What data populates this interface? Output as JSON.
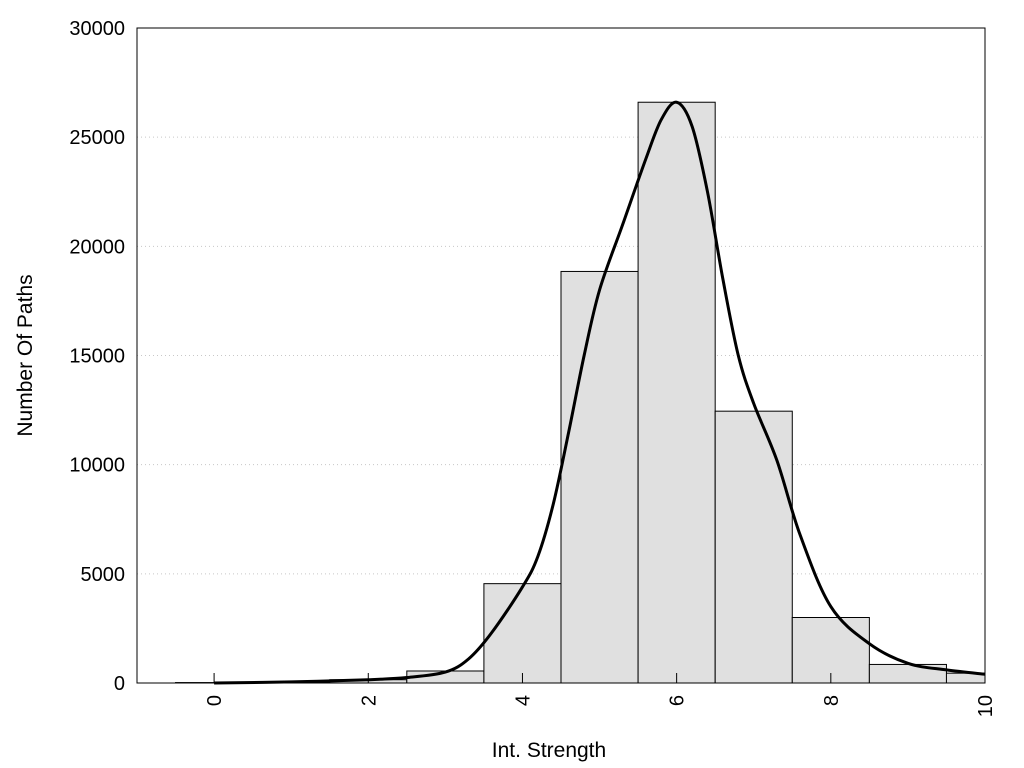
{
  "chart_data": {
    "type": "bar",
    "title": "",
    "xlabel": "Int. Strength",
    "ylabel": "Number Of Paths",
    "xlim": [
      -1,
      10
    ],
    "ylim": [
      0,
      30000
    ],
    "x_ticks": [
      "0",
      "2",
      "4",
      "6",
      "8",
      "10"
    ],
    "y_ticks": [
      "0",
      "5000",
      "10000",
      "15000",
      "20000",
      "25000",
      "30000"
    ],
    "grid": "horizontal dotted",
    "legend": "none",
    "colors": {
      "bar_fill": "#e0e0e0",
      "bar_stroke": "#000000",
      "curve": "#000000",
      "grid": "#c8c8c8"
    },
    "series": [
      {
        "kind": "histogram",
        "bins": [
          {
            "x0": -0.5,
            "x1": 0.5,
            "value": 20
          },
          {
            "x0": 0.5,
            "x1": 1.5,
            "value": 40
          },
          {
            "x0": 1.5,
            "x1": 2.5,
            "value": 150
          },
          {
            "x0": 2.5,
            "x1": 3.5,
            "value": 550
          },
          {
            "x0": 3.5,
            "x1": 4.5,
            "value": 4550
          },
          {
            "x0": 4.5,
            "x1": 5.5,
            "value": 18850
          },
          {
            "x0": 5.5,
            "x1": 6.5,
            "value": 26600
          },
          {
            "x0": 6.5,
            "x1": 7.5,
            "value": 12450
          },
          {
            "x0": 7.5,
            "x1": 8.5,
            "value": 3000
          },
          {
            "x0": 8.5,
            "x1": 9.5,
            "value": 850
          },
          {
            "x0": 9.5,
            "x1": 10.0,
            "value": 450
          }
        ]
      },
      {
        "kind": "line",
        "points": [
          [
            0,
            0
          ],
          [
            1,
            50
          ],
          [
            2,
            150
          ],
          [
            2.5,
            250
          ],
          [
            3,
            500
          ],
          [
            3.3,
            1100
          ],
          [
            3.6,
            2300
          ],
          [
            4,
            4400
          ],
          [
            4.2,
            5800
          ],
          [
            4.4,
            8200
          ],
          [
            4.6,
            11500
          ],
          [
            4.8,
            15000
          ],
          [
            5,
            18000
          ],
          [
            5.3,
            21000
          ],
          [
            5.6,
            24000
          ],
          [
            5.8,
            25800
          ],
          [
            6,
            26600
          ],
          [
            6.2,
            25500
          ],
          [
            6.4,
            22500
          ],
          [
            6.6,
            18500
          ],
          [
            6.8,
            15000
          ],
          [
            7,
            12800
          ],
          [
            7.3,
            10200
          ],
          [
            7.6,
            6800
          ],
          [
            8,
            3500
          ],
          [
            8.5,
            1800
          ],
          [
            9,
            900
          ],
          [
            9.5,
            600
          ],
          [
            10,
            400
          ]
        ]
      }
    ]
  }
}
